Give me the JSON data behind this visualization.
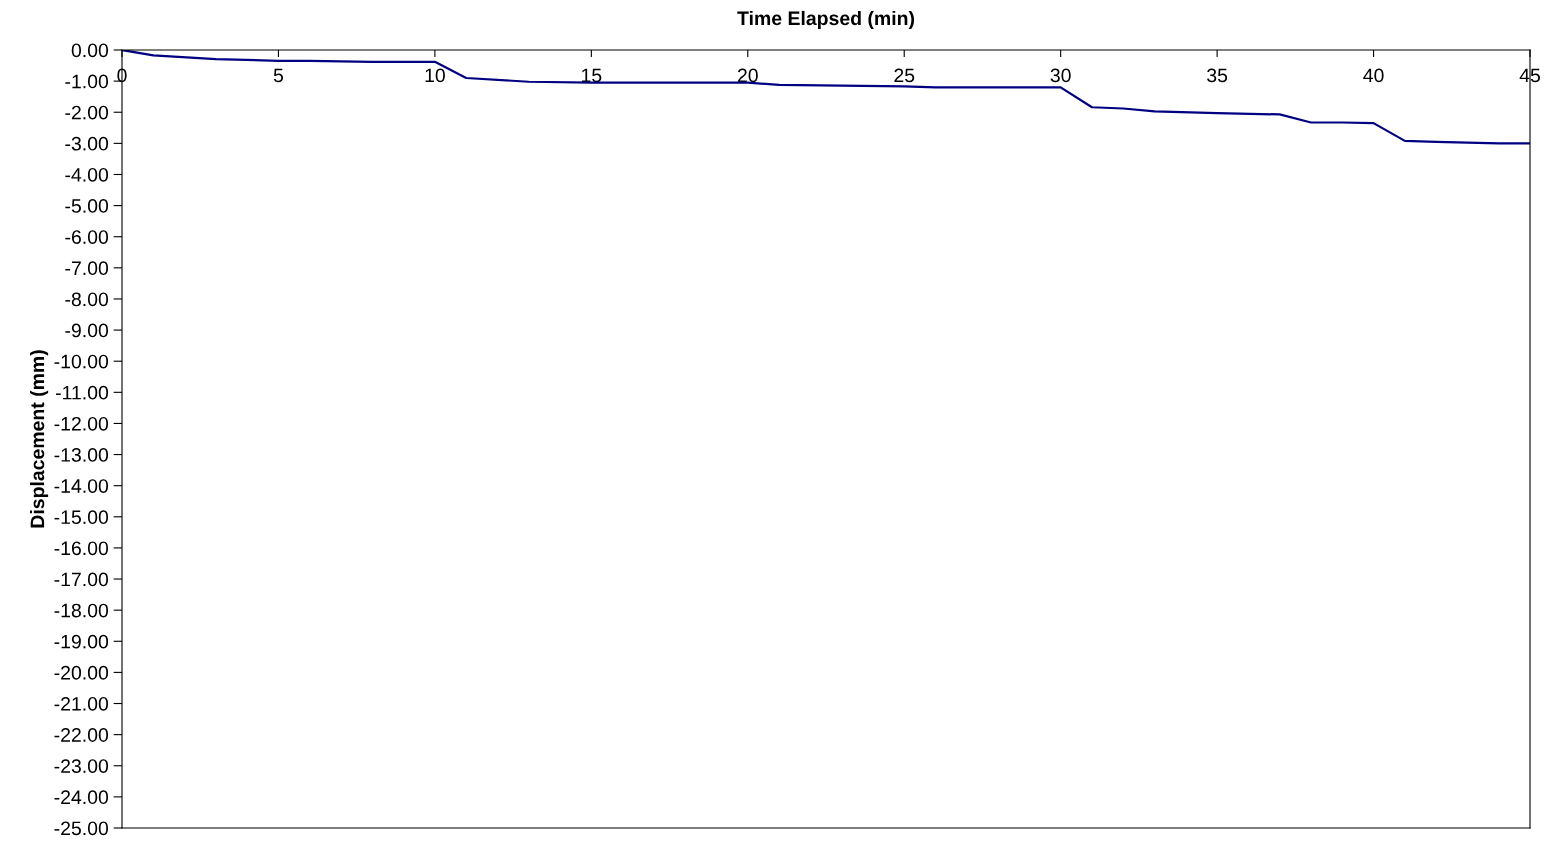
{
  "chart_data": {
    "type": "line",
    "xlabel": "Time Elapsed (min)",
    "ylabel": "Displacement (mm)",
    "x": [
      0,
      1,
      3,
      5,
      6,
      8,
      10,
      11,
      13,
      15,
      20,
      21,
      25,
      26,
      30,
      31,
      32,
      33,
      35,
      37,
      38,
      39,
      40,
      41,
      42,
      44,
      45
    ],
    "series": [
      {
        "color": "#000080",
        "values": [
          0,
          -0.17,
          -0.29,
          -0.35,
          -0.35,
          -0.38,
          -0.38,
          -0.9,
          -1.02,
          -1.05,
          -1.05,
          -1.12,
          -1.17,
          -1.2,
          -1.2,
          -1.84,
          -1.88,
          -1.97,
          -2.03,
          -2.07,
          -2.33,
          -2.33,
          -2.35,
          -2.92,
          -2.95,
          -3.0,
          -3.0
        ]
      }
    ],
    "xlim": [
      0,
      45
    ],
    "xticks": [
      0,
      5,
      10,
      15,
      20,
      25,
      30,
      35,
      40,
      45
    ],
    "ylim": [
      -25,
      0
    ],
    "yticks": [
      {
        "value": 0,
        "label": "0.00"
      },
      {
        "value": -1,
        "label": "-1.00"
      },
      {
        "value": -2,
        "label": "-2.00"
      },
      {
        "value": -3,
        "label": "-3.00"
      },
      {
        "value": -4,
        "label": "-4.00"
      },
      {
        "value": -5,
        "label": "-5.00"
      },
      {
        "value": -6,
        "label": "-6.00"
      },
      {
        "value": -7,
        "label": "-7.00"
      },
      {
        "value": -8,
        "label": "-8.00"
      },
      {
        "value": -9,
        "label": "-9.00"
      },
      {
        "value": -10,
        "label": "-10.00"
      },
      {
        "value": -11,
        "label": "-11.00"
      },
      {
        "value": -12,
        "label": "-12.00"
      },
      {
        "value": -13,
        "label": "-13.00"
      },
      {
        "value": -14,
        "label": "-14.00"
      },
      {
        "value": -15,
        "label": "-15.00"
      },
      {
        "value": -16,
        "label": "-16.00"
      },
      {
        "value": -17,
        "label": "-17.00"
      },
      {
        "value": -18,
        "label": "-18.00"
      },
      {
        "value": -19,
        "label": "-19.00"
      },
      {
        "value": -20,
        "label": "-20.00"
      },
      {
        "value": -21,
        "label": "-21.00"
      },
      {
        "value": -22,
        "label": "-22.00"
      },
      {
        "value": -23,
        "label": "-23.00"
      },
      {
        "value": -24,
        "label": "-24.00"
      },
      {
        "value": -25,
        "label": "-25.00"
      }
    ],
    "grid": false,
    "marker": "none",
    "line_style": "solid"
  }
}
